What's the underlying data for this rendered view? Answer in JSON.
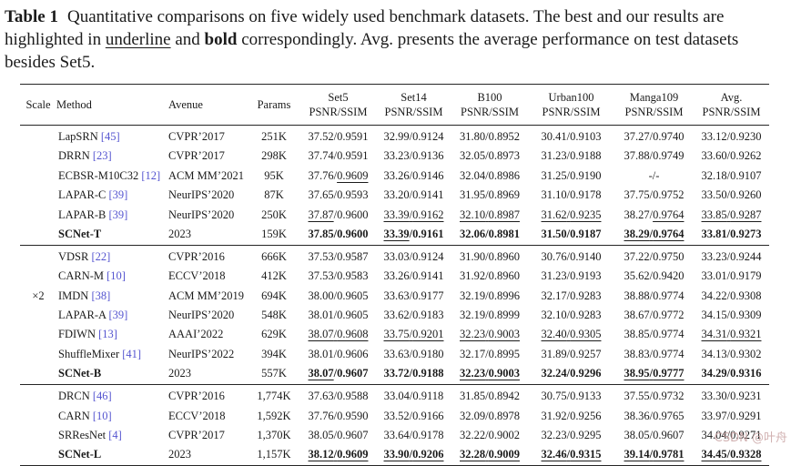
{
  "caption": {
    "label": "Table 1",
    "part1": "Quantitative comparisons on five widely used benchmark datasets. The best and our results are highlighted in ",
    "underline_word": "underline",
    "part2": " and ",
    "bold_word": "bold",
    "part3": " correspondingly. Avg. presents the average performance on test datasets besides Set5."
  },
  "colors": {
    "citation_link": "#5454d0",
    "watermark": "#c9a4a4",
    "rule": "#262626"
  },
  "watermark": "CSDN @叶舟",
  "table": {
    "col_headers": [
      "Scale",
      "Method",
      "Avenue",
      "Params"
    ],
    "dataset_headers": [
      "Set5",
      "Set14",
      "B100",
      "Urban100",
      "Manga109",
      "Avg."
    ],
    "metric_label": "PSNR/SSIM",
    "scale_label": "×2",
    "groups": [
      {
        "rows": [
          {
            "scale": "",
            "method": "LapSRN",
            "cite": "[45]",
            "avenue": "CVPR’2017",
            "params": "251K",
            "bold": false,
            "cells": [
              [
                "37.52",
                "0.9591",
                0,
                0
              ],
              [
                "32.99",
                "0.9124",
                0,
                0
              ],
              [
                "31.80",
                "0.8952",
                0,
                0
              ],
              [
                "30.41",
                "0.9103",
                0,
                0
              ],
              [
                "37.27",
                "0.9740",
                0,
                0
              ],
              [
                "33.12",
                "0.9230",
                0,
                0
              ]
            ]
          },
          {
            "scale": "",
            "method": "DRRN",
            "cite": "[23]",
            "avenue": "CVPR’2017",
            "params": "298K",
            "bold": false,
            "cells": [
              [
                "37.74",
                "0.9591",
                0,
                0
              ],
              [
                "33.23",
                "0.9136",
                0,
                0
              ],
              [
                "32.05",
                "0.8973",
                0,
                0
              ],
              [
                "31.23",
                "0.9188",
                0,
                0
              ],
              [
                "37.88",
                "0.9749",
                0,
                0
              ],
              [
                "33.60",
                "0.9262",
                0,
                0
              ]
            ]
          },
          {
            "scale": "",
            "method": "ECBSR-M10C32",
            "cite": "[12]",
            "avenue": "ACM MM’2021",
            "params": "95K",
            "bold": false,
            "cells": [
              [
                "37.76",
                "0.9609",
                0,
                1
              ],
              [
                "33.26",
                "0.9146",
                0,
                0
              ],
              [
                "32.04",
                "0.8986",
                0,
                0
              ],
              [
                "31.25",
                "0.9190",
                0,
                0
              ],
              [
                "-",
                "-",
                0,
                0
              ],
              [
                "32.18",
                "0.9107",
                0,
                0
              ]
            ]
          },
          {
            "scale": "",
            "method": "LAPAR-C",
            "cite": "[39]",
            "avenue": "NeurIPS’2020",
            "params": "87K",
            "bold": false,
            "cells": [
              [
                "37.65",
                "0.9593",
                0,
                0
              ],
              [
                "33.20",
                "0.9141",
                0,
                0
              ],
              [
                "31.95",
                "0.8969",
                0,
                0
              ],
              [
                "31.10",
                "0.9178",
                0,
                0
              ],
              [
                "37.75",
                "0.9752",
                0,
                0
              ],
              [
                "33.50",
                "0.9260",
                0,
                0
              ]
            ]
          },
          {
            "scale": "",
            "method": "LAPAR-B",
            "cite": "[39]",
            "avenue": "NeurIPS’2020",
            "params": "250K",
            "bold": false,
            "cells": [
              [
                "37.87",
                "0.9600",
                1,
                0
              ],
              [
                "33.39",
                "0.9162",
                1,
                1
              ],
              [
                "32.10",
                "0.8987",
                1,
                1
              ],
              [
                "31.62",
                "0.9235",
                1,
                1
              ],
              [
                "38.27",
                "0.9764",
                0,
                1
              ],
              [
                "33.85",
                "0.9287",
                1,
                1
              ]
            ]
          },
          {
            "scale": "",
            "method": "SCNet-T",
            "cite": "",
            "avenue": "2023",
            "params": "159K",
            "bold": true,
            "cells": [
              [
                "37.85",
                "0.9600",
                0,
                0
              ],
              [
                "33.39",
                "0.9161",
                1,
                0
              ],
              [
                "32.06",
                "0.8981",
                0,
                0
              ],
              [
                "31.50",
                "0.9187",
                0,
                0
              ],
              [
                "38.29",
                "0.9764",
                1,
                1
              ],
              [
                "33.81",
                "0.9273",
                0,
                0
              ]
            ]
          }
        ]
      },
      {
        "rows": [
          {
            "scale": "",
            "method": "VDSR",
            "cite": "[22]",
            "avenue": "CVPR’2016",
            "params": "666K",
            "bold": false,
            "cells": [
              [
                "37.53",
                "0.9587",
                0,
                0
              ],
              [
                "33.03",
                "0.9124",
                0,
                0
              ],
              [
                "31.90",
                "0.8960",
                0,
                0
              ],
              [
                "30.76",
                "0.9140",
                0,
                0
              ],
              [
                "37.22",
                "0.9750",
                0,
                0
              ],
              [
                "33.23",
                "0.9244",
                0,
                0
              ]
            ]
          },
          {
            "scale": "",
            "method": "CARN-M",
            "cite": "[10]",
            "avenue": "ECCV’2018",
            "params": "412K",
            "bold": false,
            "cells": [
              [
                "37.53",
                "0.9583",
                0,
                0
              ],
              [
                "33.26",
                "0.9141",
                0,
                0
              ],
              [
                "31.92",
                "0.8960",
                0,
                0
              ],
              [
                "31.23",
                "0.9193",
                0,
                0
              ],
              [
                "35.62",
                "0.9420",
                0,
                0
              ],
              [
                "33.01",
                "0.9179",
                0,
                0
              ]
            ]
          },
          {
            "scale": "×2",
            "method": "IMDN",
            "cite": "[38]",
            "avenue": "ACM MM’2019",
            "params": "694K",
            "bold": false,
            "cells": [
              [
                "38.00",
                "0.9605",
                0,
                0
              ],
              [
                "33.63",
                "0.9177",
                0,
                0
              ],
              [
                "32.19",
                "0.8996",
                0,
                0
              ],
              [
                "32.17",
                "0.9283",
                0,
                0
              ],
              [
                "38.88",
                "0.9774",
                0,
                0
              ],
              [
                "34.22",
                "0.9308",
                0,
                0
              ]
            ]
          },
          {
            "scale": "",
            "method": "LAPAR-A",
            "cite": "[39]",
            "avenue": "NeurIPS’2020",
            "params": "548K",
            "bold": false,
            "cells": [
              [
                "38.01",
                "0.9605",
                0,
                0
              ],
              [
                "33.62",
                "0.9183",
                0,
                0
              ],
              [
                "32.19",
                "0.8999",
                0,
                0
              ],
              [
                "32.10",
                "0.9283",
                0,
                0
              ],
              [
                "38.67",
                "0.9772",
                0,
                0
              ],
              [
                "34.15",
                "0.9309",
                0,
                0
              ]
            ]
          },
          {
            "scale": "",
            "method": "FDIWN",
            "cite": "[13]",
            "avenue": "AAAI’2022",
            "params": "629K",
            "bold": false,
            "cells": [
              [
                "38.07",
                "0.9608",
                1,
                1
              ],
              [
                "33.75",
                "0.9201",
                1,
                1
              ],
              [
                "32.23",
                "0.9003",
                1,
                1
              ],
              [
                "32.40",
                "0.9305",
                1,
                1
              ],
              [
                "38.85",
                "0.9774",
                0,
                0
              ],
              [
                "34.31",
                "0.9321",
                1,
                1
              ]
            ]
          },
          {
            "scale": "",
            "method": "ShuffleMixer",
            "cite": "[41]",
            "avenue": "NeurIPS’2022",
            "params": "394K",
            "bold": false,
            "cells": [
              [
                "38.01",
                "0.9606",
                0,
                0
              ],
              [
                "33.63",
                "0.9180",
                0,
                0
              ],
              [
                "32.17",
                "0.8995",
                0,
                0
              ],
              [
                "31.89",
                "0.9257",
                0,
                0
              ],
              [
                "38.83",
                "0.9774",
                0,
                0
              ],
              [
                "34.13",
                "0.9302",
                0,
                0
              ]
            ]
          },
          {
            "scale": "",
            "method": "SCNet-B",
            "cite": "",
            "avenue": "2023",
            "params": "557K",
            "bold": true,
            "cells": [
              [
                "38.07",
                "0.9607",
                1,
                0
              ],
              [
                "33.72",
                "0.9188",
                0,
                0
              ],
              [
                "32.23",
                "0.9003",
                1,
                1
              ],
              [
                "32.24",
                "0.9296",
                0,
                0
              ],
              [
                "38.95",
                "0.9777",
                1,
                1
              ],
              [
                "34.29",
                "0.9316",
                0,
                0
              ]
            ]
          }
        ]
      },
      {
        "rows": [
          {
            "scale": "",
            "method": "DRCN",
            "cite": "[46]",
            "avenue": "CVPR’2016",
            "params": "1,774K",
            "bold": false,
            "cells": [
              [
                "37.63",
                "0.9588",
                0,
                0
              ],
              [
                "33.04",
                "0.9118",
                0,
                0
              ],
              [
                "31.85",
                "0.8942",
                0,
                0
              ],
              [
                "30.75",
                "0.9133",
                0,
                0
              ],
              [
                "37.55",
                "0.9732",
                0,
                0
              ],
              [
                "33.30",
                "0.9231",
                0,
                0
              ]
            ]
          },
          {
            "scale": "",
            "method": "CARN",
            "cite": "[10]",
            "avenue": "ECCV’2018",
            "params": "1,592K",
            "bold": false,
            "cells": [
              [
                "37.76",
                "0.9590",
                0,
                0
              ],
              [
                "33.52",
                "0.9166",
                0,
                0
              ],
              [
                "32.09",
                "0.8978",
                0,
                0
              ],
              [
                "31.92",
                "0.9256",
                0,
                0
              ],
              [
                "38.36",
                "0.9765",
                0,
                0
              ],
              [
                "33.97",
                "0.9291",
                0,
                0
              ]
            ]
          },
          {
            "scale": "",
            "method": "SRResNet",
            "cite": "[4]",
            "avenue": "CVPR’2017",
            "params": "1,370K",
            "bold": false,
            "cells": [
              [
                "38.05",
                "0.9607",
                0,
                0
              ],
              [
                "33.64",
                "0.9178",
                0,
                0
              ],
              [
                "32.22",
                "0.9002",
                0,
                0
              ],
              [
                "32.23",
                "0.9295",
                0,
                0
              ],
              [
                "38.05",
                "0.9607",
                0,
                0
              ],
              [
                "34.04",
                "0.9271",
                0,
                0
              ]
            ]
          },
          {
            "scale": "",
            "method": "SCNet-L",
            "cite": "",
            "avenue": "2023",
            "params": "1,157K",
            "bold": true,
            "cells": [
              [
                "38.12",
                "0.9609",
                1,
                1
              ],
              [
                "33.90",
                "0.9206",
                1,
                1
              ],
              [
                "32.28",
                "0.9009",
                1,
                1
              ],
              [
                "32.46",
                "0.9315",
                1,
                1
              ],
              [
                "39.14",
                "0.9781",
                1,
                1
              ],
              [
                "34.45",
                "0.9328",
                1,
                1
              ]
            ]
          }
        ]
      }
    ]
  }
}
